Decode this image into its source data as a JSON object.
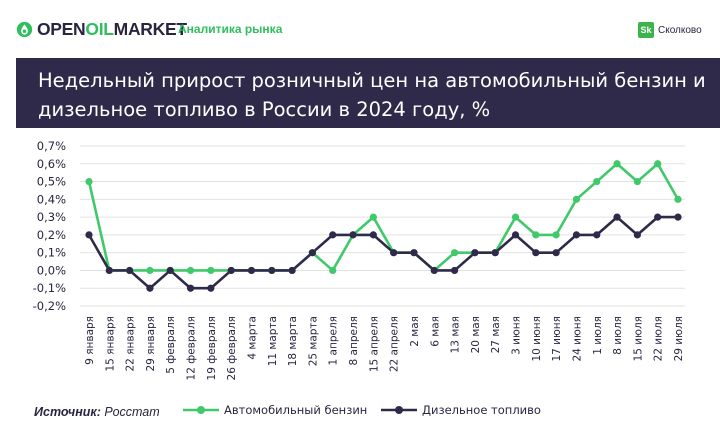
{
  "header": {
    "logo_prefix": "OPEN",
    "logo_accent": "OIL",
    "logo_suffix": "MARKET",
    "section": "Аналитика рынка",
    "partner_mark": "Sk",
    "partner_name": "Сколково"
  },
  "colors": {
    "gasoline": "#3fc96a",
    "diesel": "#2f2a4a",
    "title_bg": "#2f2a4a",
    "brand_green": "#2fbf5f"
  },
  "footer": {
    "source_label": "Источник:",
    "source_value": "Росстат"
  },
  "chart_data": {
    "type": "line",
    "title": "Недельный прирост розничный цен на автомобильный бензин и дизельное топливо в России в 2024 году, %",
    "xlabel": "",
    "ylabel": "",
    "ylim": [
      -0.2,
      0.7
    ],
    "y_ticks": [
      "0,7%",
      "0,6%",
      "0,5%",
      "0,4%",
      "0,3%",
      "0,2%",
      "0,1%",
      "0,0%",
      "-0,1%",
      "-0,2%"
    ],
    "grid": true,
    "legend_position": "bottom",
    "categories": [
      "9 января",
      "15 января",
      "22 января",
      "29 января",
      "5 февраля",
      "12 февраля",
      "19 февраля",
      "26 февраля",
      "4 марта",
      "11 марта",
      "18 марта",
      "25 марта",
      "1 апреля",
      "8 апреля",
      "15 апреля",
      "22 апреля",
      "2 мая",
      "6 мая",
      "13 мая",
      "20 мая",
      "27 мая",
      "3 июня",
      "10 июня",
      "17 июня",
      "24 июня",
      "1 июля",
      "8 июля",
      "15 июля",
      "22 июля",
      "29 июля"
    ],
    "series": [
      {
        "name": "Автомобильный бензин",
        "color": "#3fc96a",
        "values": [
          0.5,
          0.0,
          0.0,
          0.0,
          0.0,
          0.0,
          0.0,
          0.0,
          0.0,
          0.0,
          0.0,
          0.1,
          0.0,
          0.2,
          0.3,
          0.1,
          0.1,
          0.0,
          0.1,
          0.1,
          0.1,
          0.3,
          0.2,
          0.2,
          0.4,
          0.5,
          0.6,
          0.5,
          0.6,
          0.4
        ]
      },
      {
        "name": "Дизельное топливо",
        "color": "#2f2a4a",
        "values": [
          0.2,
          0.0,
          0.0,
          -0.1,
          0.0,
          -0.1,
          -0.1,
          0.0,
          0.0,
          0.0,
          0.0,
          0.1,
          0.2,
          0.2,
          0.2,
          0.1,
          0.1,
          0.0,
          0.0,
          0.1,
          0.1,
          0.2,
          0.1,
          0.1,
          0.2,
          0.2,
          0.3,
          0.2,
          0.3,
          0.3
        ]
      }
    ]
  }
}
